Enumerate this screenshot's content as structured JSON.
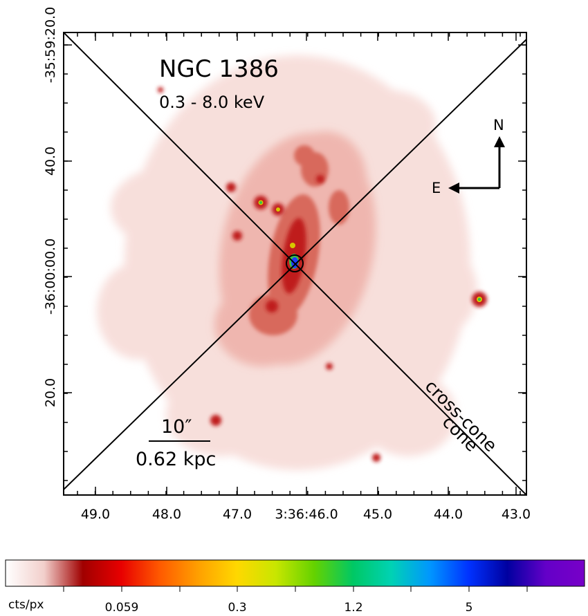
{
  "image": {
    "object": "NGC 1386",
    "energy_band": "0.3 - 8.0 keV",
    "colors": {
      "background": "#ffffff",
      "frame": "#000000",
      "emission_pale": "#f6d6d2",
      "emission_light": "#eca29a",
      "emission_mid": "#d65548",
      "emission_strong": "#b81414",
      "nucleus_core": "#1e3cff",
      "nucleus_ring": "#00aa44"
    }
  },
  "axes": {
    "ra_ticks": [
      "49.0",
      "48.0",
      "47.0",
      "3:36:46.0",
      "45.0",
      "44.0",
      "43.0"
    ],
    "dec_ticks": [
      "-35:59:20.0",
      "40.0",
      "-36:00:00.0",
      "20.0"
    ]
  },
  "compass": {
    "north": "N",
    "east": "E"
  },
  "scale_bar": {
    "angular": "10″",
    "physical": "0.62 kpc"
  },
  "regions": {
    "cross_cone": "cross-cone",
    "cone": "cone"
  },
  "colorbar": {
    "unit": "cts/px",
    "tick_labels": [
      "0.059",
      "0.3",
      "1.2",
      "5"
    ],
    "stops": [
      "#ffffff",
      "#f2cfcb",
      "#a00000",
      "#e80000",
      "#ff5a00",
      "#ffa000",
      "#ffd800",
      "#c8e600",
      "#64d200",
      "#00c864",
      "#00d2b4",
      "#0096ff",
      "#0032ff",
      "#0000a0",
      "#6400c8",
      "#7800c8"
    ]
  }
}
